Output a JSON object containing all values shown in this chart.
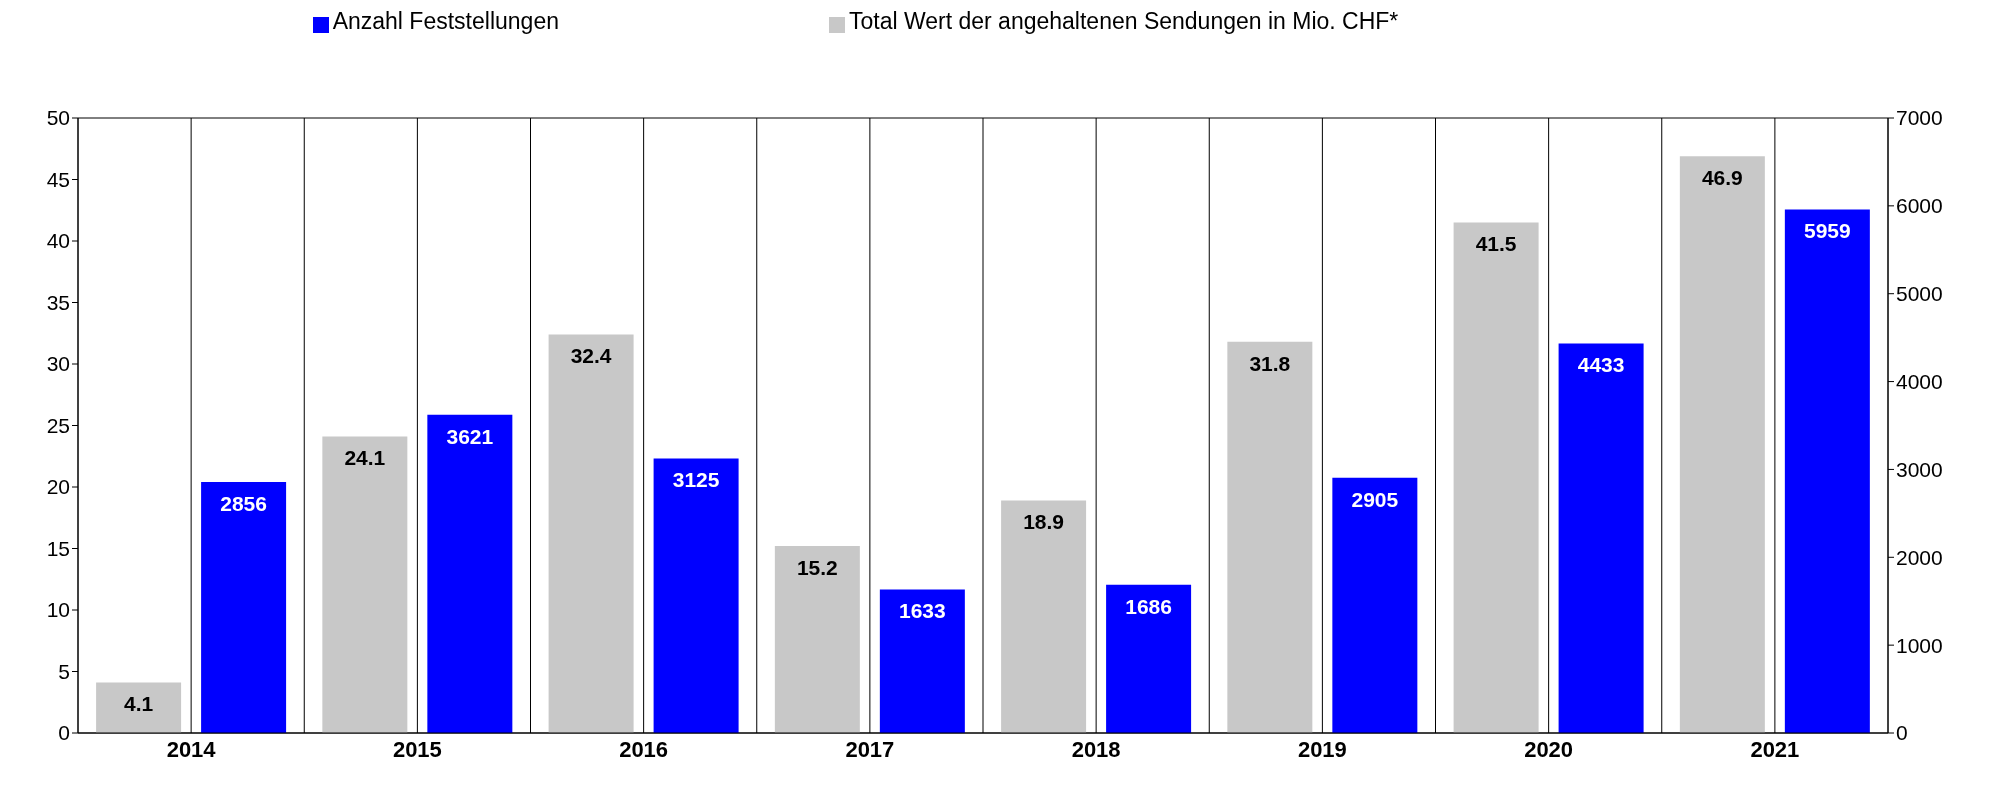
{
  "chart_data": {
    "type": "bar",
    "categories": [
      "2014",
      "2015",
      "2016",
      "2017",
      "2018",
      "2019",
      "2020",
      "2021"
    ],
    "series": [
      {
        "name": "Total Wert der angehaltenen Sendungen in Mio. CHF*",
        "color": "#c8c8c8",
        "values": [
          4.1,
          24.1,
          32.4,
          15.2,
          18.9,
          31.8,
          41.5,
          46.9
        ]
      },
      {
        "name": "Anzahl Feststellungen",
        "color": "#0000ff",
        "axis": "y2",
        "values": [
          2856,
          3621,
          3125,
          1633,
          1686,
          2905,
          4433,
          5959
        ]
      }
    ],
    "ylim": [
      0,
      50
    ],
    "yticks": [
      0,
      5,
      10,
      15,
      20,
      25,
      30,
      35,
      40,
      45,
      50
    ],
    "y2lim": [
      0,
      7000
    ],
    "y2ticks": [
      0,
      1000,
      2000,
      3000,
      4000,
      5000,
      6000,
      7000
    ],
    "data_labels": true,
    "grid": true,
    "legend": "top"
  }
}
